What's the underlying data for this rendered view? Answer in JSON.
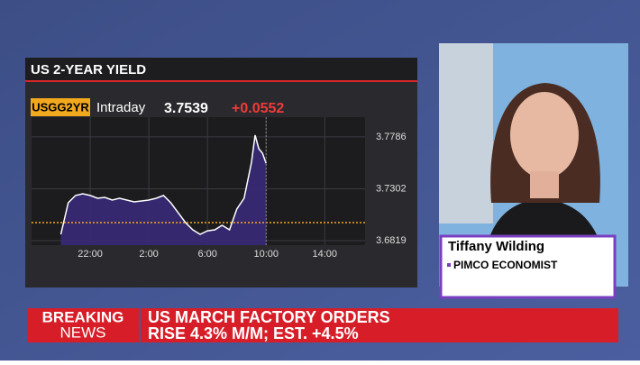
{
  "chart_data": {
    "type": "line",
    "title": "US 2-YEAR YIELD",
    "ticker": "USGG2YR",
    "period": "Intraday",
    "last_value": 3.7539,
    "change": "+0.0552",
    "x": [
      "20:00",
      "20:30",
      "21:00",
      "21:30",
      "22:00",
      "22:30",
      "23:00",
      "23:30",
      "0:00",
      "0:30",
      "1:00",
      "1:30",
      "2:00",
      "2:30",
      "3:00",
      "3:30",
      "4:00",
      "4:30",
      "5:00",
      "5:30",
      "6:00",
      "6:30",
      "7:00",
      "7:30",
      "8:00",
      "8:30",
      "9:00",
      "9:15",
      "9:30",
      "9:45",
      "10:00"
    ],
    "values": [
      3.6878,
      3.7172,
      3.724,
      3.7256,
      3.724,
      3.7214,
      3.7222,
      3.7197,
      3.7214,
      3.7197,
      3.718,
      3.7189,
      3.7197,
      3.7214,
      3.724,
      3.7172,
      3.708,
      3.6987,
      3.692,
      3.6878,
      3.6911,
      3.692,
      3.6962,
      3.692,
      3.7113,
      3.7214,
      3.755,
      3.7802,
      3.7676,
      3.7634,
      3.7539
    ],
    "color": "#ffffff",
    "fill": "#3a2a78",
    "prev_close": 3.6987,
    "prev_close_color": "#f2a81d",
    "xlim": [
      "18:00",
      "16:45"
    ],
    "xticks": [
      "22:00",
      "2:00",
      "6:00",
      "10:00",
      "14:00"
    ],
    "ylim": [
      3.6777,
      3.797
    ],
    "yticks": [
      3.6819,
      3.7302,
      3.7786
    ],
    "grid": true
  },
  "guest": {
    "name": "Tiffany Wilding",
    "role": "PIMCO ECONOMIST"
  },
  "banner": {
    "label_top": "BREAKING",
    "label_bottom": "NEWS",
    "headline_1": "US MARCH FACTORY ORDERS",
    "headline_2": "RISE 4.3% M/M; EST. +4.5%"
  }
}
